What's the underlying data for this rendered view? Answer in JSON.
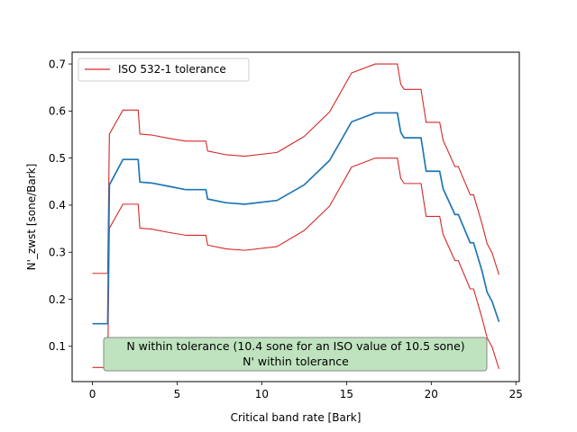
{
  "chart_data": {
    "type": "line",
    "xlabel": "Critical band rate [Bark]",
    "ylabel": "N'_zwst [sone/Bark]",
    "xlim": [
      -1.2,
      25.2
    ],
    "ylim": [
      0.025,
      0.725
    ],
    "xticks": [
      0,
      5,
      10,
      15,
      20,
      25
    ],
    "yticks": [
      0.1,
      0.2,
      0.3,
      0.4,
      0.5,
      0.6,
      0.7
    ],
    "xtick_labels": [
      "0",
      "5",
      "10",
      "15",
      "20",
      "25"
    ],
    "ytick_labels": [
      "0.1",
      "0.2",
      "0.3",
      "0.4",
      "0.5",
      "0.6",
      "0.7"
    ],
    "grid": false,
    "legend": {
      "placement": "top-left",
      "entries": [
        "ISO 532-1 tolerance"
      ]
    },
    "colors": {
      "measured": "#1f77b4",
      "tolerance": "#d62728",
      "annotation_fill": "#bfe3bf",
      "annotation_edge": "#8a8a8a"
    },
    "series": [
      {
        "name": "",
        "role": "measured",
        "x": [
          0,
          0.9,
          1.0,
          1.8,
          2.7,
          2.8,
          3.5,
          4.5,
          5.5,
          6.7,
          6.8,
          7.9,
          9.0,
          10.9,
          12.5,
          14.0,
          15.3,
          16.7,
          18.0,
          18.2,
          18.4,
          19.4,
          19.7,
          20.5,
          20.7,
          21.4,
          21.6,
          22.3,
          22.5,
          23.0,
          23.3,
          23.6,
          24.0
        ],
        "y": [
          0.148,
          0.148,
          0.443,
          0.497,
          0.497,
          0.449,
          0.447,
          0.44,
          0.433,
          0.433,
          0.413,
          0.405,
          0.402,
          0.41,
          0.443,
          0.495,
          0.577,
          0.596,
          0.596,
          0.555,
          0.543,
          0.543,
          0.472,
          0.472,
          0.435,
          0.38,
          0.38,
          0.32,
          0.32,
          0.26,
          0.215,
          0.195,
          0.152
        ]
      },
      {
        "name": "ISO 532-1 tolerance",
        "role": "upper",
        "x": [
          0,
          0.9,
          1.0,
          1.8,
          2.7,
          2.8,
          3.5,
          4.5,
          5.5,
          6.7,
          6.8,
          7.9,
          9.0,
          10.9,
          12.5,
          14.0,
          15.3,
          16.7,
          18.0,
          18.2,
          18.4,
          19.4,
          19.7,
          20.5,
          20.7,
          21.4,
          21.6,
          22.3,
          22.5,
          23.0,
          23.3,
          23.6,
          24.0
        ],
        "y": [
          0.255,
          0.255,
          0.551,
          0.602,
          0.602,
          0.551,
          0.549,
          0.542,
          0.536,
          0.536,
          0.515,
          0.507,
          0.504,
          0.512,
          0.546,
          0.598,
          0.681,
          0.7,
          0.7,
          0.657,
          0.646,
          0.646,
          0.576,
          0.576,
          0.538,
          0.482,
          0.482,
          0.422,
          0.422,
          0.36,
          0.318,
          0.298,
          0.252
        ]
      },
      {
        "name": "ISO 532-1 tolerance",
        "role": "lower",
        "x": [
          0,
          0.9,
          1.0,
          1.8,
          2.7,
          2.8,
          3.5,
          4.5,
          5.5,
          6.7,
          6.8,
          7.9,
          9.0,
          10.9,
          12.5,
          14.0,
          15.3,
          16.7,
          18.0,
          18.2,
          18.4,
          19.4,
          19.7,
          20.5,
          20.7,
          21.4,
          21.6,
          22.3,
          22.5,
          23.0,
          23.3,
          23.6,
          24.0
        ],
        "y": [
          0.055,
          0.055,
          0.351,
          0.402,
          0.402,
          0.351,
          0.349,
          0.342,
          0.336,
          0.336,
          0.315,
          0.307,
          0.304,
          0.312,
          0.346,
          0.398,
          0.481,
          0.5,
          0.5,
          0.457,
          0.446,
          0.446,
          0.376,
          0.376,
          0.338,
          0.282,
          0.282,
          0.222,
          0.222,
          0.16,
          0.118,
          0.098,
          0.052
        ]
      }
    ],
    "annotation": {
      "lines": [
        "N within tolerance (10.4 sone for an ISO value of 10.5 sone)",
        "N' within tolerance"
      ]
    }
  }
}
